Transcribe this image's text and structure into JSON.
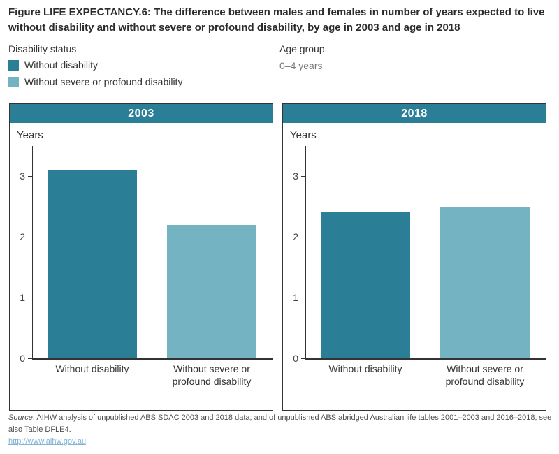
{
  "title": "Figure LIFE EXPECTANCY.6: The difference between males and females in number of years expected to live without disability and without severe or profound disability, by age in 2003 and age in 2018",
  "legend": {
    "title": "Disability status",
    "items": [
      {
        "label": "Without disability",
        "color": "#2a7e95"
      },
      {
        "label": "Without severe or profound disability",
        "color": "#74b3c2"
      }
    ]
  },
  "age_group": {
    "title": "Age group",
    "value": "0–4 years"
  },
  "chart_data": {
    "type": "bar",
    "ylabel": "Years",
    "ylim": [
      0,
      3.45
    ],
    "yticks": [
      0,
      1,
      2,
      3
    ],
    "grid": false,
    "categories": [
      "Without disability",
      "Without severe or profound disability"
    ],
    "series_colors": [
      "#2a7e95",
      "#74b3c2"
    ],
    "panels": [
      {
        "title": "2003",
        "values": [
          3.1,
          2.2
        ]
      },
      {
        "title": "2018",
        "values": [
          2.4,
          2.5
        ]
      }
    ],
    "header_band_color": "#2a7e95"
  },
  "source": {
    "label": "Source",
    "text": ": AIHW analysis of unpublished ABS SDAC 2003 and 2018 data; and of unpublished ABS abridged Australian life tables 2001–2003 and 2016–2018; see also Table DFLE4.",
    "link": "http://www.aihw.gov.au"
  }
}
